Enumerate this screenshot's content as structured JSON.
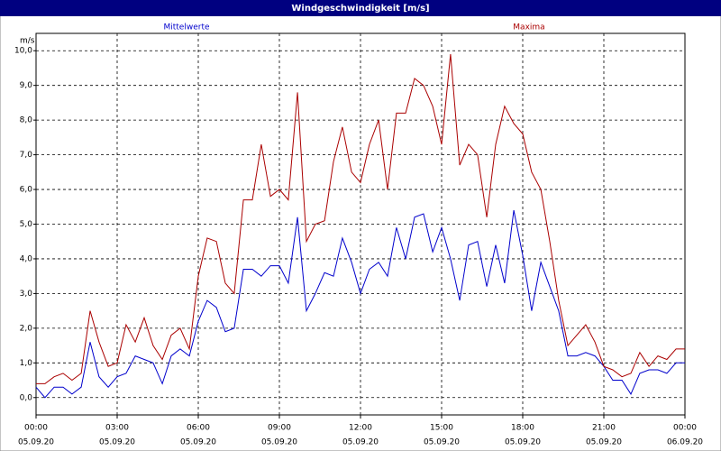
{
  "chart_data": {
    "type": "line",
    "title": "Windgeschwindigkeit [m/s]",
    "y_unit": "m/s",
    "x": [
      0,
      0.33,
      0.67,
      1,
      1.33,
      1.67,
      2,
      2.33,
      2.67,
      3,
      3.33,
      3.67,
      4,
      4.33,
      4.67,
      5,
      5.33,
      5.67,
      6,
      6.33,
      6.67,
      7,
      7.33,
      7.67,
      8,
      8.33,
      8.67,
      9,
      9.33,
      9.67,
      10,
      10.33,
      10.67,
      11,
      11.33,
      11.67,
      12,
      12.33,
      12.67,
      13,
      13.33,
      13.67,
      14,
      14.33,
      14.67,
      15,
      15.33,
      15.67,
      16,
      16.33,
      16.67,
      17,
      17.33,
      17.67,
      18,
      18.33,
      18.67,
      19,
      19.33,
      19.67,
      20,
      20.33,
      20.67,
      21,
      21.33,
      21.67,
      22,
      22.33,
      22.67,
      23,
      23.33,
      23.67,
      24
    ],
    "series": [
      {
        "name": "Mittelwerte",
        "color": "#0000cc",
        "values": [
          0.3,
          0.0,
          0.3,
          0.3,
          0.1,
          0.3,
          1.6,
          0.6,
          0.3,
          0.6,
          0.7,
          1.2,
          1.1,
          1.0,
          0.4,
          1.2,
          1.4,
          1.2,
          2.2,
          2.8,
          2.6,
          1.9,
          2.0,
          3.7,
          3.7,
          3.5,
          3.8,
          3.8,
          3.3,
          5.2,
          2.5,
          3.0,
          3.6,
          3.5,
          4.6,
          3.9,
          3.0,
          3.7,
          3.9,
          3.5,
          4.9,
          4.0,
          5.2,
          5.3,
          4.2,
          4.9,
          4.0,
          2.8,
          4.4,
          4.5,
          3.2,
          4.4,
          3.3,
          5.4,
          4.1,
          2.5,
          3.9,
          3.2,
          2.5,
          1.2,
          1.2,
          1.3,
          1.2,
          0.9,
          0.5,
          0.5,
          0.1,
          0.7,
          0.8,
          0.8,
          0.7,
          1.0,
          1.0
        ]
      },
      {
        "name": "Maxima",
        "color": "#aa0000",
        "values": [
          0.4,
          0.4,
          0.6,
          0.7,
          0.5,
          0.7,
          2.5,
          1.6,
          0.9,
          1.0,
          2.1,
          1.6,
          2.3,
          1.5,
          1.1,
          1.8,
          2.0,
          1.4,
          3.5,
          4.6,
          4.5,
          3.3,
          3.0,
          5.7,
          5.7,
          7.3,
          5.8,
          6.0,
          5.7,
          8.8,
          4.5,
          5.0,
          5.1,
          6.8,
          7.8,
          6.5,
          6.2,
          7.3,
          8.0,
          6.0,
          8.2,
          8.2,
          9.2,
          9.0,
          8.4,
          7.3,
          9.9,
          6.7,
          7.3,
          7.0,
          5.2,
          7.3,
          8.4,
          7.9,
          7.6,
          6.5,
          6.0,
          4.5,
          2.8,
          1.5,
          1.8,
          2.1,
          1.6,
          0.9,
          0.8,
          0.6,
          0.7,
          1.3,
          0.9,
          1.2,
          1.1,
          1.4,
          1.4
        ]
      }
    ],
    "xlim": [
      0,
      24
    ],
    "xticks": [
      {
        "value": 0,
        "label": "00:00",
        "date": "05.09.20"
      },
      {
        "value": 3,
        "label": "03:00",
        "date": "05.09.20"
      },
      {
        "value": 6,
        "label": "06:00",
        "date": "05.09.20"
      },
      {
        "value": 9,
        "label": "09:00",
        "date": "05.09.20"
      },
      {
        "value": 12,
        "label": "12:00",
        "date": "05.09.20"
      },
      {
        "value": 15,
        "label": "15:00",
        "date": "05.09.20"
      },
      {
        "value": 18,
        "label": "18:00",
        "date": "05.09.20"
      },
      {
        "value": 21,
        "label": "21:00",
        "date": "05.09.20"
      },
      {
        "value": 24,
        "label": "00:00",
        "date": "06.09.20"
      }
    ],
    "ylim": [
      -0.5,
      10.5
    ],
    "yticks": [
      {
        "value": 0,
        "label": "0,0"
      },
      {
        "value": 1,
        "label": "1,0"
      },
      {
        "value": 2,
        "label": "2,0"
      },
      {
        "value": 3,
        "label": "3,0"
      },
      {
        "value": 4,
        "label": "4,0"
      },
      {
        "value": 5,
        "label": "5,0"
      },
      {
        "value": 6,
        "label": "6,0"
      },
      {
        "value": 7,
        "label": "7,0"
      },
      {
        "value": 8,
        "label": "8,0"
      },
      {
        "value": 9,
        "label": "9,0"
      },
      {
        "value": 10,
        "label": "10,0"
      }
    ],
    "grid": true
  }
}
